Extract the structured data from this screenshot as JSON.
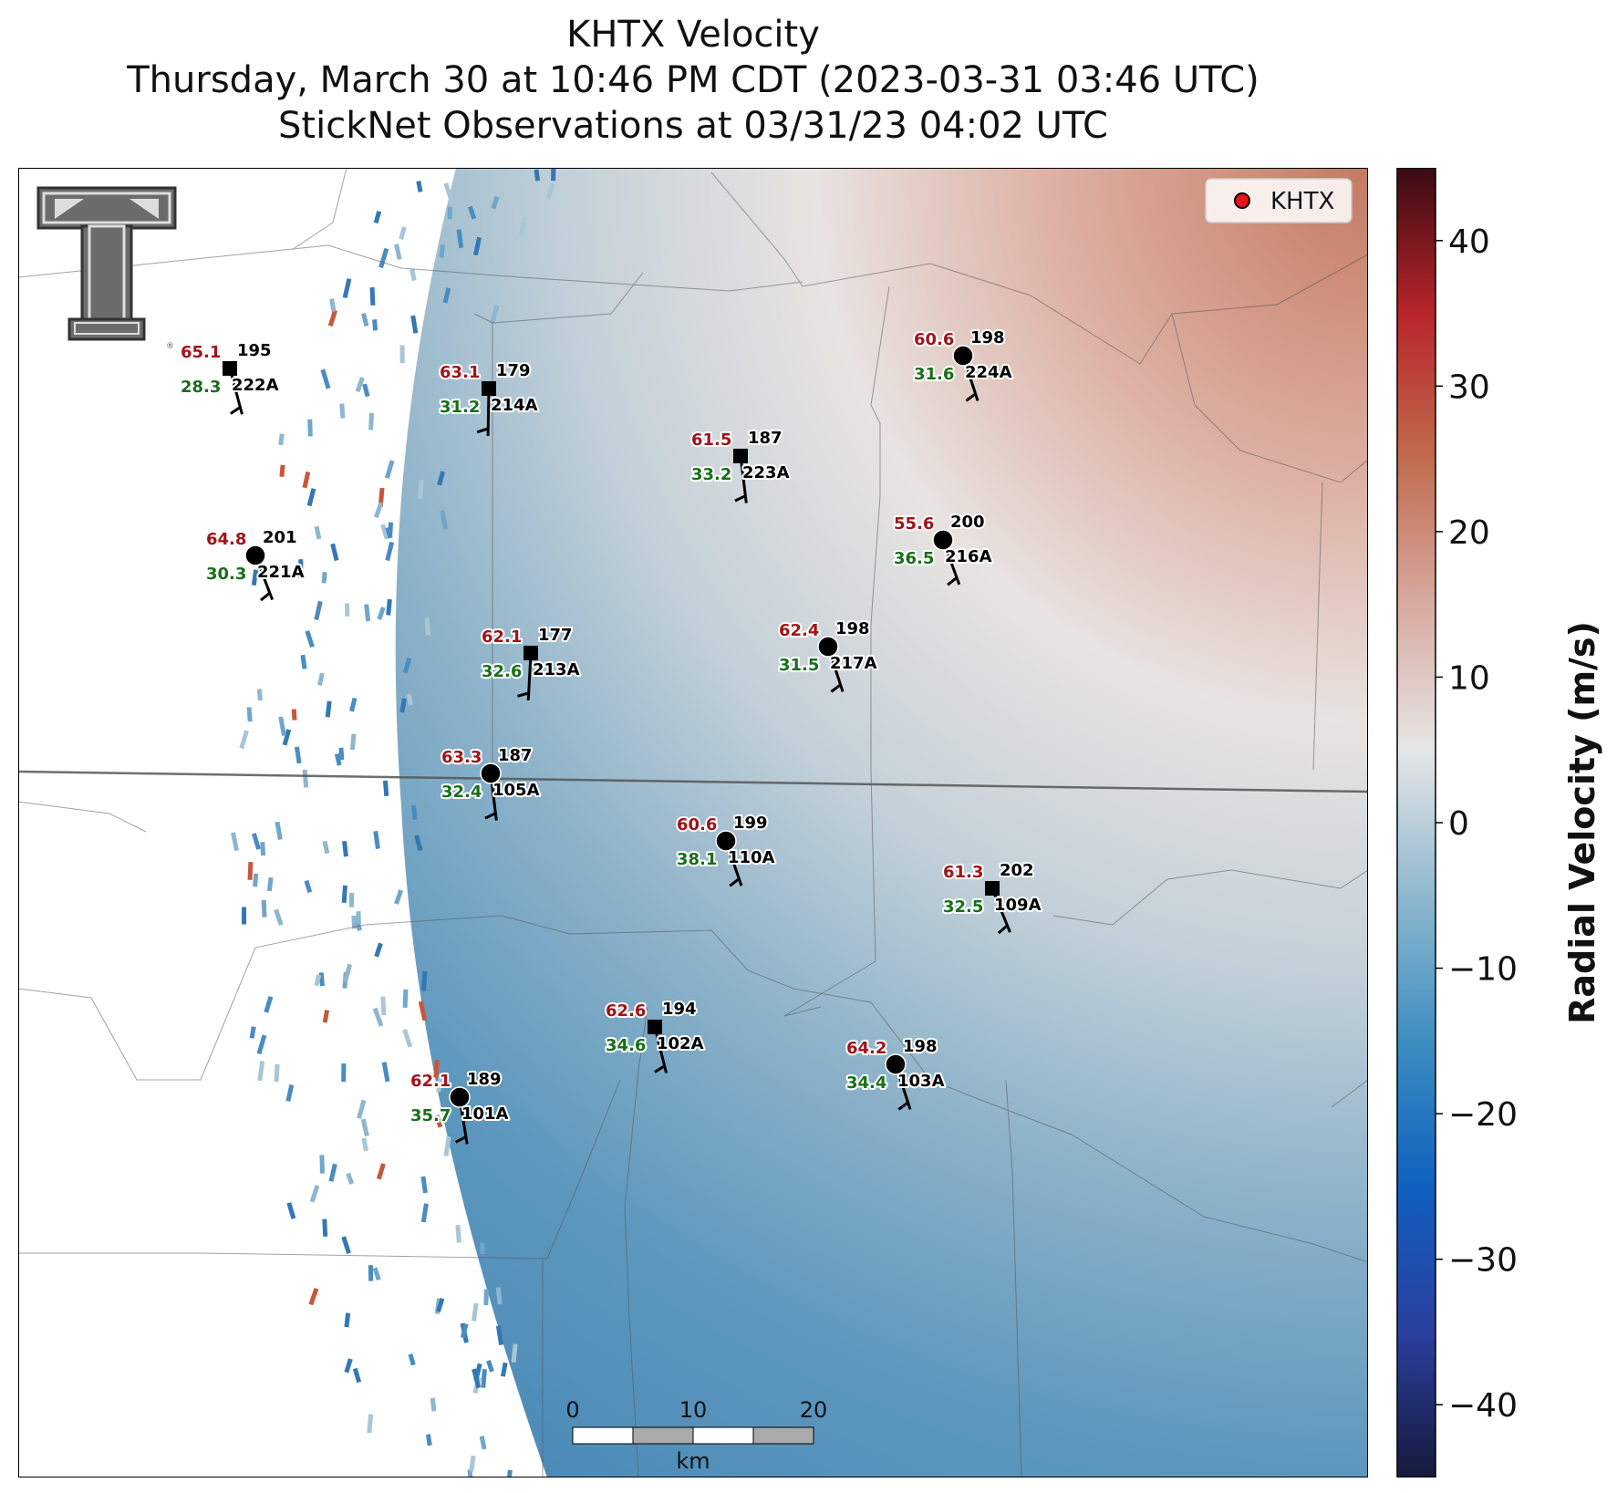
{
  "title": {
    "line1": "KHTX Velocity",
    "line2": "Thursday, March 30 at 10:46 PM CDT (2023-03-31 03:46 UTC)",
    "line3": "StickNet Observations at 03/31/23 04:02 UTC"
  },
  "legend": {
    "label": "KHTX",
    "marker_color": "#e8141b"
  },
  "logo": {
    "name": "texas-tech-double-t-logo"
  },
  "colorbar": {
    "label": "Radial Velocity (m/s)",
    "min": -45,
    "max": 45,
    "ticks": [
      40,
      30,
      20,
      10,
      0,
      -10,
      -20,
      -30,
      -40
    ],
    "tick_labels": [
      "40",
      "30",
      "20",
      "10",
      "0",
      "−10",
      "−20",
      "−30",
      "−40"
    ],
    "colormap": [
      "#161a3c",
      "#2b3f9e",
      "#1060c0",
      "#3d8ec0",
      "#8fb8cf",
      "#e6e6e6",
      "#d8aaa0",
      "#c06c4e",
      "#b8252a",
      "#3a0a12"
    ]
  },
  "scalebar": {
    "labels": [
      "0",
      "10",
      "20"
    ],
    "unit": "km"
  },
  "stations": [
    {
      "id": "222A",
      "gust": "65.1",
      "dir": "195",
      "speed": "28.3",
      "marker": "square"
    },
    {
      "id": "214A",
      "gust": "63.1",
      "dir": "179",
      "speed": "31.2",
      "marker": "square"
    },
    {
      "id": "224A",
      "gust": "60.6",
      "dir": "198",
      "speed": "31.6",
      "marker": "circle"
    },
    {
      "id": "223A",
      "gust": "61.5",
      "dir": "187",
      "speed": "33.2",
      "marker": "square"
    },
    {
      "id": "221A",
      "gust": "64.8",
      "dir": "201",
      "speed": "30.3",
      "marker": "circle"
    },
    {
      "id": "216A",
      "gust": "55.6",
      "dir": "200",
      "speed": "36.5",
      "marker": "circle"
    },
    {
      "id": "213A",
      "gust": "62.1",
      "dir": "177",
      "speed": "32.6",
      "marker": "square"
    },
    {
      "id": "217A",
      "gust": "62.4",
      "dir": "198",
      "speed": "31.5",
      "marker": "circle"
    },
    {
      "id": "105A",
      "gust": "63.3",
      "dir": "187",
      "speed": "32.4",
      "marker": "circle"
    },
    {
      "id": "110A",
      "gust": "60.6",
      "dir": "199",
      "speed": "38.1",
      "marker": "circle"
    },
    {
      "id": "109A",
      "gust": "61.3",
      "dir": "202",
      "speed": "32.5",
      "marker": "square"
    },
    {
      "id": "102A",
      "gust": "62.6",
      "dir": "194",
      "speed": "34.6",
      "marker": "square"
    },
    {
      "id": "103A",
      "gust": "64.2",
      "dir": "198",
      "speed": "34.4",
      "marker": "circle"
    },
    {
      "id": "101A",
      "gust": "62.1",
      "dir": "189",
      "speed": "35.7",
      "marker": "circle"
    }
  ]
}
